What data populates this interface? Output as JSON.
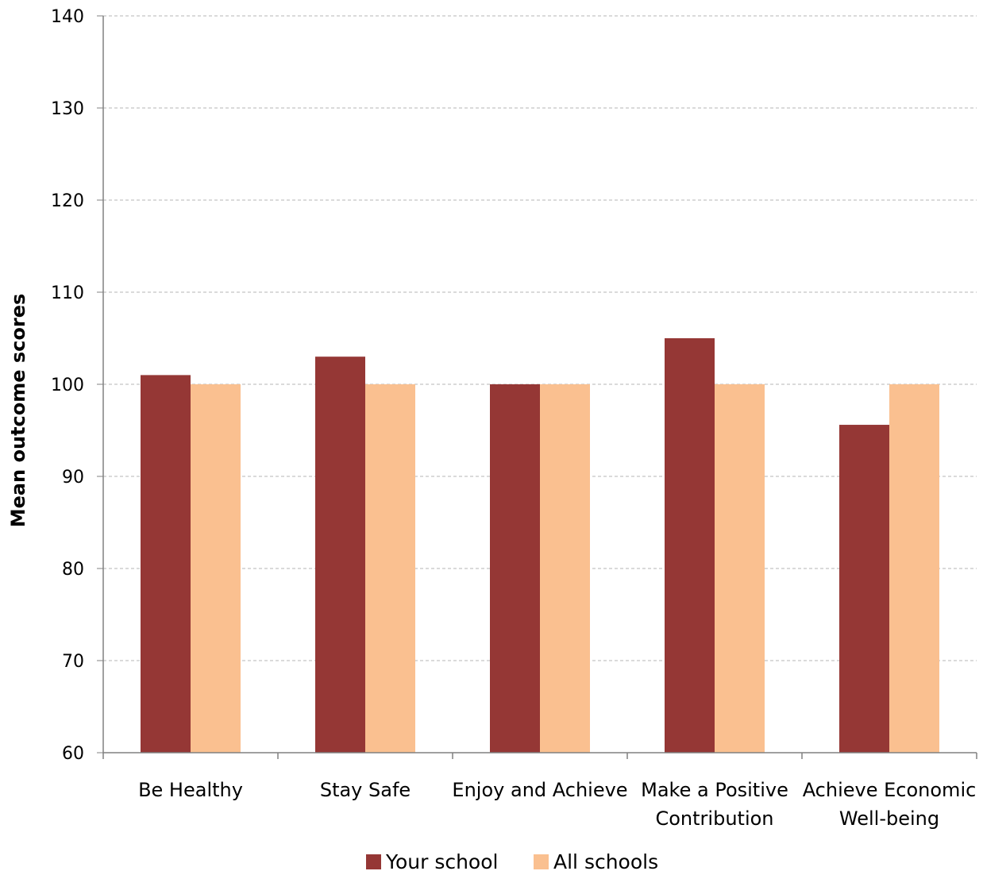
{
  "chart_data": {
    "type": "bar",
    "title": "",
    "xlabel": "",
    "ylabel": "Mean outcome scores",
    "ylim": [
      60,
      140
    ],
    "yticks": [
      60,
      70,
      80,
      90,
      100,
      110,
      120,
      130,
      140
    ],
    "grid": true,
    "legend_position": "bottom",
    "categories": [
      [
        "Be Healthy"
      ],
      [
        "Stay Safe"
      ],
      [
        "Enjoy and Achieve"
      ],
      [
        "Make a Positive",
        "Contribution"
      ],
      [
        "Achieve Economic",
        "Well-being"
      ]
    ],
    "series": [
      {
        "name": "Your school",
        "color": "#953735",
        "values": [
          101,
          103,
          100,
          105,
          95.6
        ]
      },
      {
        "name": "All schools",
        "color": "#FAC090",
        "values": [
          100,
          100,
          100,
          100,
          100
        ]
      }
    ]
  }
}
